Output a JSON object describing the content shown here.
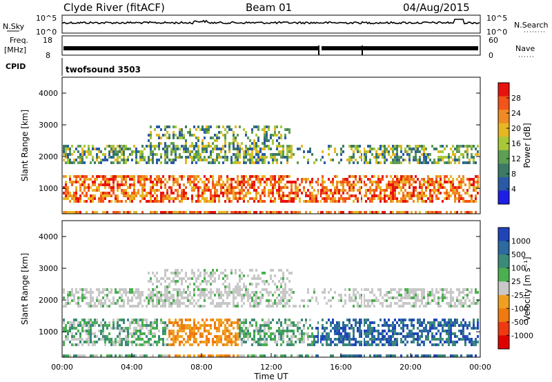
{
  "header": {
    "station": "Clyde River (fitACF)",
    "beam": "Beam 01",
    "date": "04/Aug/2015"
  },
  "strip": {
    "nsky_label": "N.Sky",
    "nsky_ticks": [
      "10^5",
      "10^0"
    ],
    "nsearch_label": "N.Search",
    "nsearch_ticks": [
      "10^5",
      "10^0"
    ],
    "freq_label_1": "Freq.",
    "freq_label_2": "[MHz]",
    "freq_ticks": [
      "18",
      "8"
    ],
    "nave_label": "Nave",
    "nave_ticks": [
      "60",
      "0"
    ],
    "cpid_label": "CPID",
    "cpid_value": "twofsound  3503"
  },
  "chart_data": [
    {
      "type": "heatmap",
      "name": "power",
      "ylabel": "Slant Range [km]",
      "yticks": [
        1000,
        2000,
        3000,
        4000
      ],
      "ylim": [
        200,
        4500
      ],
      "colorbar_label": "Power [dB]",
      "colorbar_ticks": [
        "28",
        "24",
        "20",
        "16",
        "12",
        "8",
        "4"
      ],
      "colorbar_colors": [
        "#e8120e",
        "#f3541a",
        "#f08a22",
        "#e7b723",
        "#a8c838",
        "#5f9e55",
        "#3c7a64",
        "#2a5aa6",
        "#1e1ee6"
      ]
    },
    {
      "type": "heatmap",
      "name": "velocity",
      "ylabel": "Slant Range [km]",
      "yticks": [
        1000,
        2000,
        3000,
        4000
      ],
      "ylim": [
        200,
        4500
      ],
      "colorbar_label": "Velocity [m s⁻¹]",
      "colorbar_ticks": [
        "1000",
        "500",
        "100",
        "25",
        "-25",
        "-100",
        "-500",
        "-1000"
      ],
      "colorbar_colors": [
        "#2045b8",
        "#2d6aa0",
        "#3c8a78",
        "#4caf50",
        "#c8c8c8",
        "#f0a020",
        "#f07a10",
        "#ee3a10",
        "#e00000"
      ],
      "xticks": [
        "00:00",
        "04:00",
        "08:00",
        "12:00",
        "16:00",
        "20:00",
        "00:00"
      ],
      "xlabel": "Time UT"
    }
  ]
}
